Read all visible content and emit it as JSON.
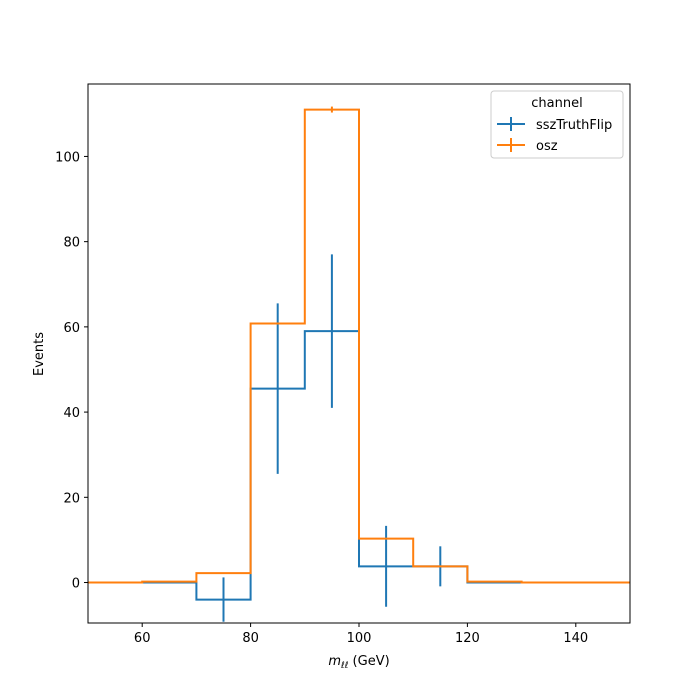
{
  "chart_data": {
    "type": "line",
    "title": "",
    "xlabel_main": "m",
    "xlabel_sub": "ℓℓ",
    "xlabel_unit": " (GeV)",
    "ylabel": "Events",
    "xlim": [
      50,
      150
    ],
    "ylim": [
      -9.5,
      117
    ],
    "xticks": [
      60,
      80,
      100,
      120,
      140
    ],
    "yticks": [
      0,
      20,
      40,
      60,
      80,
      100
    ],
    "grid": false,
    "legend": {
      "title": "channel",
      "placement": "top-right"
    },
    "bin_edges": [
      40,
      50,
      60,
      70,
      80,
      90,
      100,
      110,
      120,
      130,
      140,
      150
    ],
    "series": [
      {
        "name": "sszTruthFlip",
        "color": "#1f77b4",
        "values": [
          0,
          0,
          0,
          -4,
          45.5,
          59,
          3.8,
          3.8,
          0,
          0,
          0
        ],
        "errors": [
          0,
          0,
          0,
          5.2,
          20,
          18,
          9.5,
          4.7,
          0,
          0,
          0
        ]
      },
      {
        "name": "osz",
        "color": "#ff7f0e",
        "values": [
          0,
          0,
          0.2,
          2.2,
          60.8,
          111,
          10.3,
          3.8,
          0.2,
          0,
          0
        ],
        "errors": [
          0,
          0,
          0,
          0,
          0,
          0.7,
          0,
          0,
          0,
          0,
          0
        ]
      }
    ]
  }
}
